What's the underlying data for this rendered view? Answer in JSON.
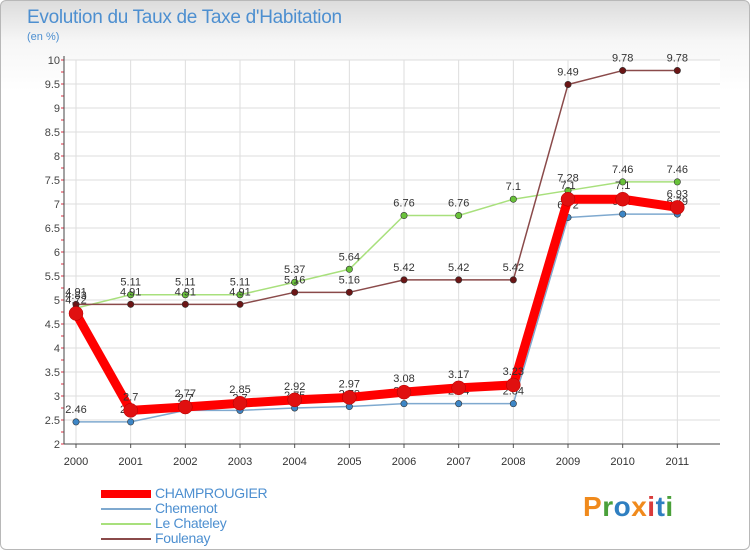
{
  "header": {
    "title": "Evolution du Taux de Taxe d'Habitation",
    "unit": "(en %)"
  },
  "logo": {
    "text": "Proxiti",
    "colors": [
      "#f08a1c",
      "#4aa03a",
      "#2f7fc1",
      "#f08a1c",
      "#d93b3b",
      "#2f7fc1",
      "#4aa03a"
    ]
  },
  "chart_data": {
    "type": "line",
    "title": "Evolution du Taux de Taxe d'Habitation",
    "ylabel": "(en %)",
    "xlabel": "",
    "x": [
      "2000",
      "2001",
      "2002",
      "2003",
      "2004",
      "2005",
      "2006",
      "2007",
      "2008",
      "2009",
      "2010",
      "2011"
    ],
    "ylim": [
      2,
      10
    ],
    "yticks": [
      2,
      2.5,
      3,
      3.5,
      4,
      4.5,
      5,
      5.5,
      6,
      6.5,
      7,
      7.5,
      8,
      8.5,
      9,
      9.5,
      10
    ],
    "grid": true,
    "legend_position": "bottom-left",
    "series": [
      {
        "name": "Chemenot",
        "color": "#7fa9cf",
        "marker_color": "#3d86c6",
        "values": [
          2.46,
          2.46,
          2.7,
          2.7,
          2.75,
          2.78,
          2.84,
          2.84,
          2.84,
          6.72,
          6.79,
          6.79
        ],
        "labels": [
          "2.46",
          "2.46",
          "2.7",
          "2.7",
          "2.75",
          "2.78",
          "2.84",
          "2.84",
          "2.84",
          "6.72",
          "6.79",
          "6.79"
        ]
      },
      {
        "name": "Le Chateley",
        "color": "#a8e07c",
        "marker_color": "#69c23a",
        "values": [
          4.83,
          5.11,
          5.11,
          5.11,
          5.37,
          5.64,
          6.76,
          6.76,
          7.1,
          7.28,
          7.46,
          7.46
        ],
        "labels": [
          "4.83",
          "5.11",
          "5.11",
          "5.11",
          "5.37",
          "5.64",
          "6.76",
          "6.76",
          "7.1",
          "7.28",
          "7.46",
          "7.46"
        ]
      },
      {
        "name": "Foulenay",
        "color": "#8a4a4a",
        "marker_color": "#6b1515",
        "values": [
          4.91,
          4.91,
          4.91,
          4.91,
          5.16,
          5.16,
          5.42,
          5.42,
          5.42,
          9.49,
          9.78,
          9.78
        ],
        "labels": [
          "4.91",
          "4.91",
          "4.91",
          "4.91",
          "5.16",
          "5.16",
          "5.42",
          "5.42",
          "5.42",
          "9.49",
          "9.78",
          "9.78"
        ]
      },
      {
        "name": "CHAMPROUGIER",
        "color": "#ff0000",
        "marker_color": "#e01010",
        "values": [
          4.72,
          2.7,
          2.77,
          2.85,
          2.92,
          2.97,
          3.08,
          3.17,
          3.23,
          7.1,
          7.1,
          6.93
        ],
        "labels": [
          "4.72",
          "2.7",
          "2.77",
          "2.85",
          "2.92",
          "2.97",
          "3.08",
          "3.17",
          "3.23",
          "7.1",
          "7.1",
          "6.93"
        ]
      }
    ]
  },
  "legend": {
    "items": [
      {
        "label": "CHAMPROUGIER",
        "color": "#ff0000",
        "thick": true
      },
      {
        "label": "Chemenot",
        "color": "#7fa9cf",
        "thick": false
      },
      {
        "label": "Le Chateley",
        "color": "#a8e07c",
        "thick": false
      },
      {
        "label": "Foulenay",
        "color": "#8a4a4a",
        "thick": false
      }
    ]
  }
}
